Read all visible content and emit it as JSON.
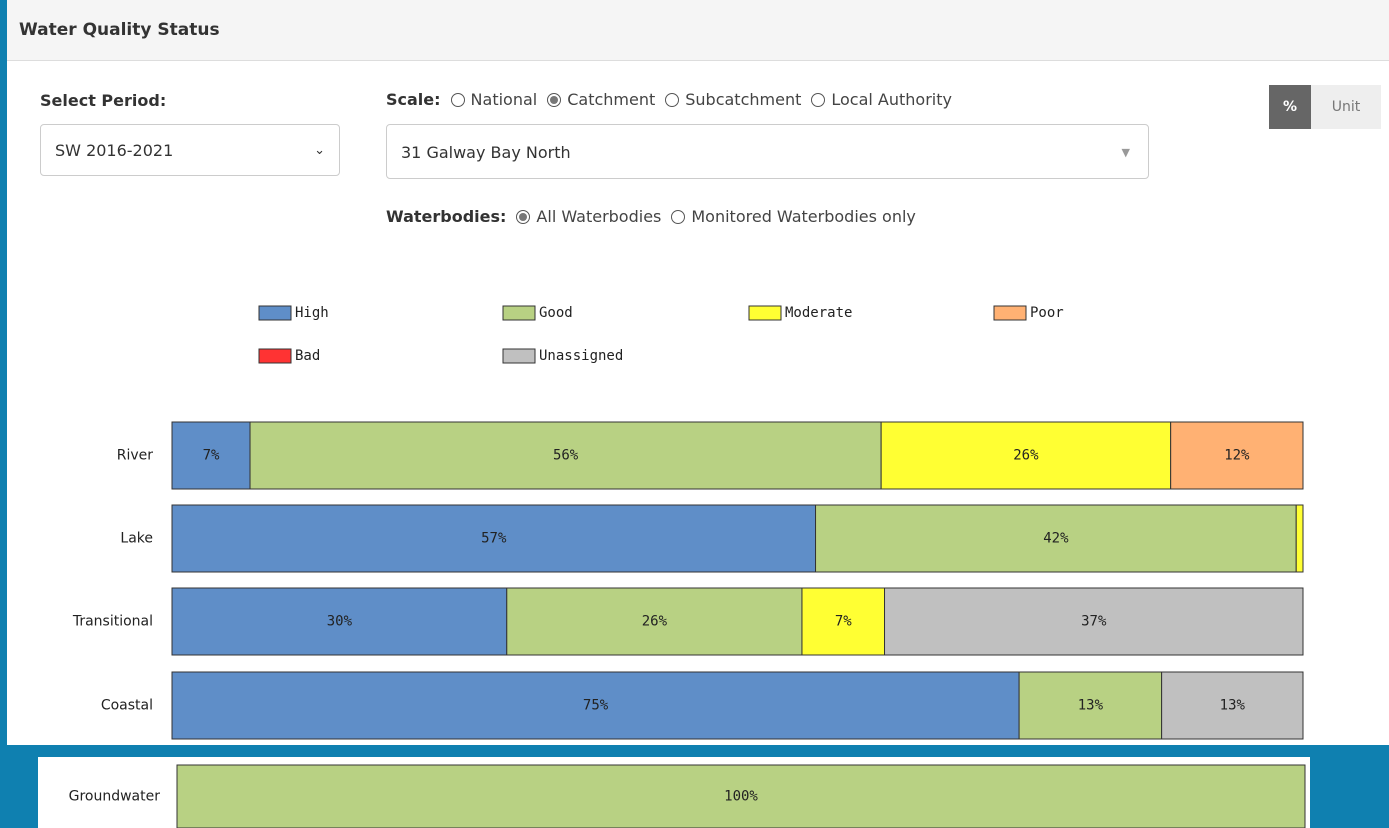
{
  "header": {
    "title": "Water Quality Status"
  },
  "period": {
    "label": "Select Period:",
    "value": "SW 2016-2021"
  },
  "scale": {
    "label": "Scale:",
    "options": [
      "National",
      "Catchment",
      "Subcatchment",
      "Local Authority"
    ],
    "selected": 1,
    "value": "31 Galway Bay North"
  },
  "waterbodies": {
    "label": "Waterbodies:",
    "options": [
      "All Waterbodies",
      "Monitored Waterbodies only"
    ],
    "selected": 0
  },
  "toggle": {
    "options": [
      "%",
      "Unit"
    ],
    "selected": 0
  },
  "chart_data": {
    "type": "stacked-barh",
    "categories": [
      "River",
      "Lake",
      "Transitional",
      "Coastal",
      "Groundwater"
    ],
    "xlim": [
      0,
      100
    ],
    "series": [
      {
        "name": "High",
        "color": "#5f8ec8",
        "values": [
          6.9,
          56.9,
          29.6,
          74.9,
          null
        ],
        "value_labels": [
          "7%",
          "57%",
          "30%",
          "75%",
          null
        ]
      },
      {
        "name": "Good",
        "color": "#b8d183",
        "values": [
          55.8,
          42.5,
          26.1,
          12.6,
          100
        ],
        "value_labels": [
          "56%",
          "42%",
          "26%",
          "13%",
          "100%"
        ]
      },
      {
        "name": "Moderate",
        "color": "#ffff33",
        "values": [
          25.6,
          0.6,
          7.3,
          null,
          null
        ],
        "value_labels": [
          "26%",
          null,
          "7%",
          null,
          null
        ]
      },
      {
        "name": "Poor",
        "color": "#ffb173",
        "values": [
          11.7,
          null,
          null,
          null,
          null
        ],
        "value_labels": [
          "12%",
          null,
          null,
          null,
          null
        ]
      },
      {
        "name": "Bad",
        "color": "#ff3333",
        "values": [
          null,
          null,
          null,
          null,
          null
        ],
        "value_labels": [
          null,
          null,
          null,
          null,
          null
        ]
      },
      {
        "name": "Unassigned",
        "color": "#c0c0c0",
        "values": [
          null,
          null,
          37.0,
          12.5,
          null
        ],
        "value_labels": [
          null,
          null,
          "37%",
          "13%",
          null
        ]
      }
    ]
  }
}
